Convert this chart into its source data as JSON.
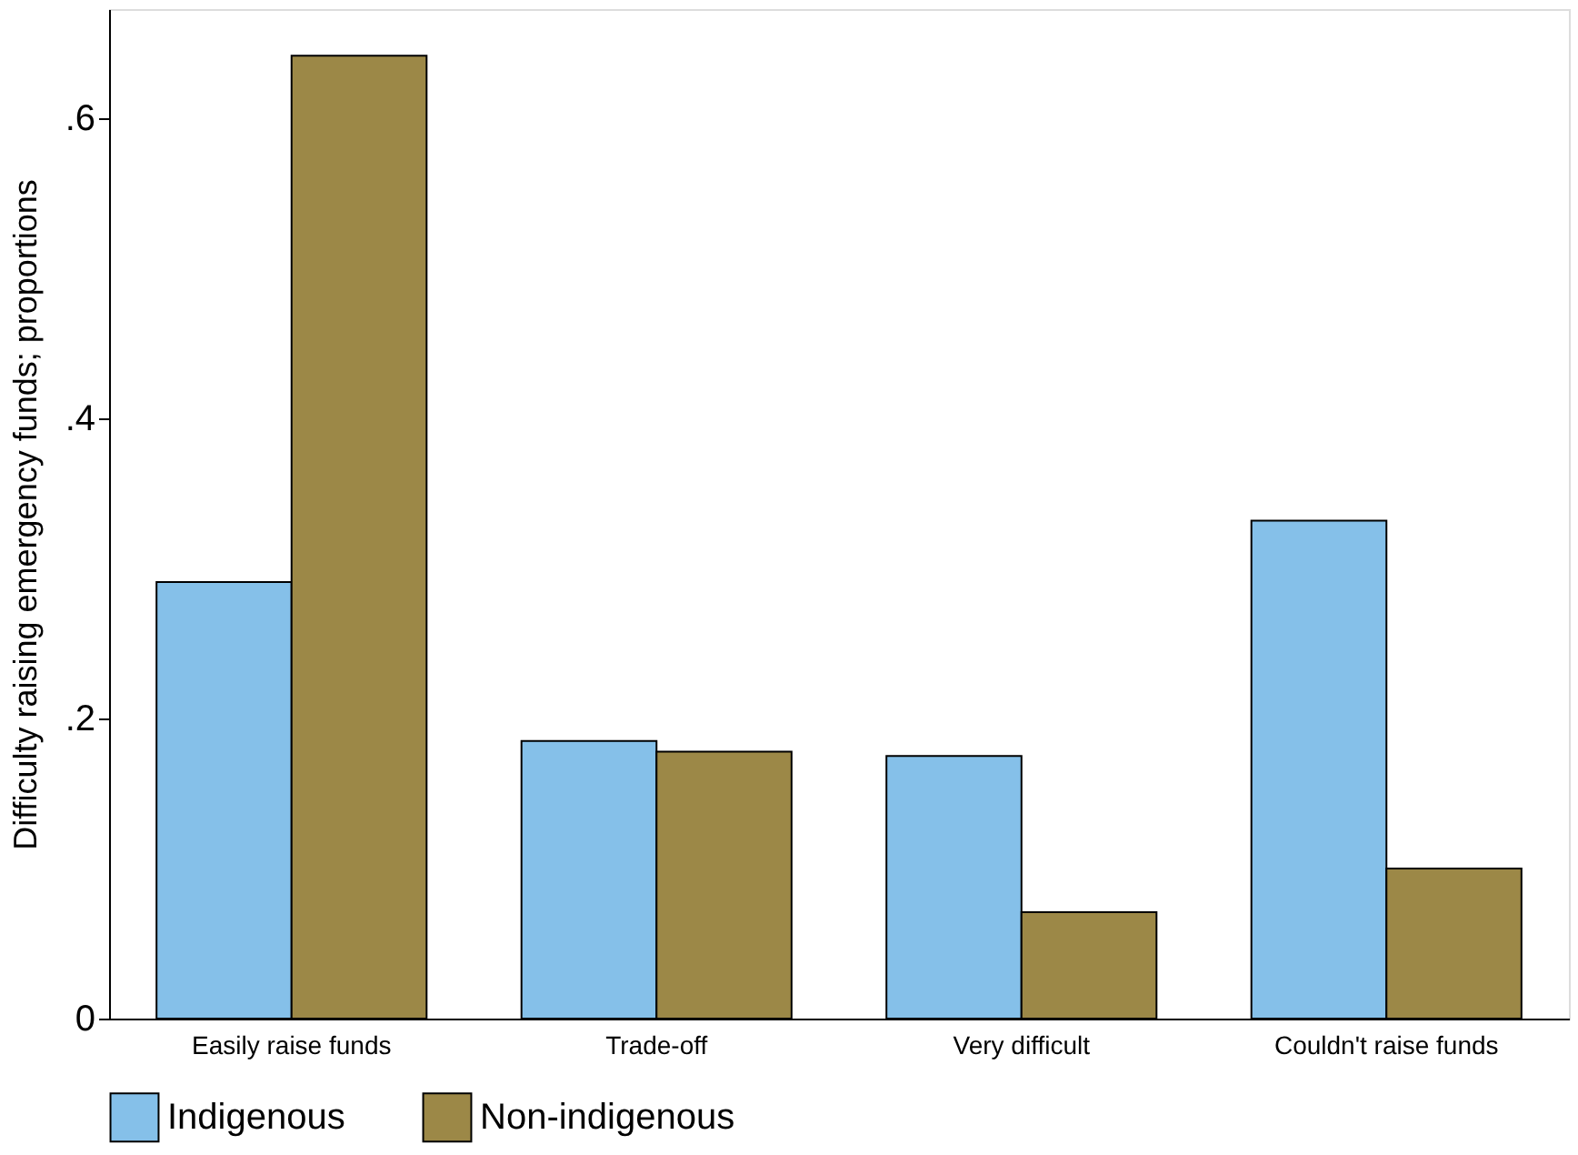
{
  "chart_data": {
    "type": "bar",
    "ylabel": "Difficulty raising emergency funds; proportions",
    "categories": [
      "Easily raise funds",
      "Trade-off",
      "Very difficult",
      "Couldn't raise funds"
    ],
    "series": [
      {
        "name": "Indigenous",
        "color": "#85c0e9",
        "values": [
          0.291,
          0.185,
          0.175,
          0.332
        ]
      },
      {
        "name": "Non-indigenous",
        "color": "#9c8847",
        "values": [
          0.642,
          0.178,
          0.071,
          0.1
        ]
      }
    ],
    "ylim": [
      0,
      0.673
    ],
    "yticks": [
      0,
      {
        "value": 0.2,
        "label": ".2"
      },
      {
        "value": 0.4,
        "label": ".4"
      },
      {
        "value": 0.6,
        "label": ".6"
      }
    ],
    "grid": false,
    "legend": "bottom"
  }
}
